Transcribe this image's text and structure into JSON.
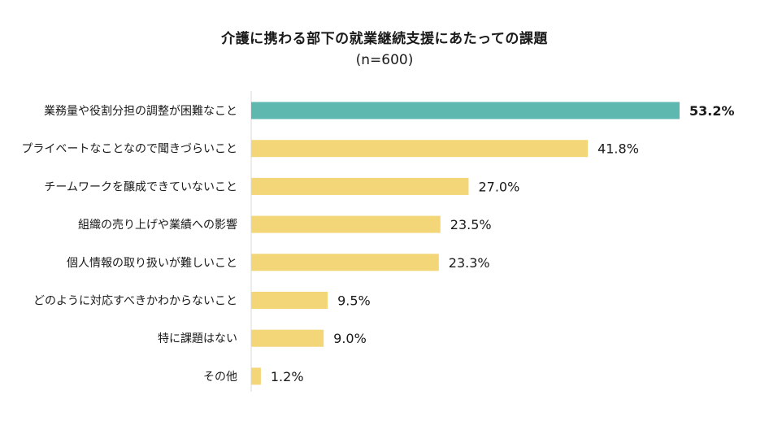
{
  "chart_data": {
    "type": "bar",
    "orientation": "horizontal",
    "title": "介護に携わる部下の就業継続支援にあたっての課題",
    "subtitle": "(n=600)",
    "categories": [
      "業務量や役割分担の調整が困難なこと",
      "プライベートなことなので聞きづらいこと",
      "チームワークを醸成できていないこと",
      "組織の売り上げや業績への影響",
      "個人情報の取り扱いが難しいこと",
      "どのように対応すべきかわからないこと",
      "特に課題はない",
      "その他"
    ],
    "values": [
      53.2,
      41.8,
      27.0,
      23.5,
      23.3,
      9.5,
      9.0,
      1.2
    ],
    "value_labels": [
      "53.2%",
      "41.8%",
      "27.0%",
      "23.5%",
      "23.3%",
      "9.5%",
      "9.0%",
      "1.2%"
    ],
    "highlight_index": 0,
    "xlim": [
      0,
      53.2
    ],
    "grid": false,
    "legend": "none",
    "colors": {
      "highlight": "#5fb8b0",
      "default": "#f3d677",
      "axis": "#d9d9d9",
      "text": "#1a1a1a"
    }
  }
}
